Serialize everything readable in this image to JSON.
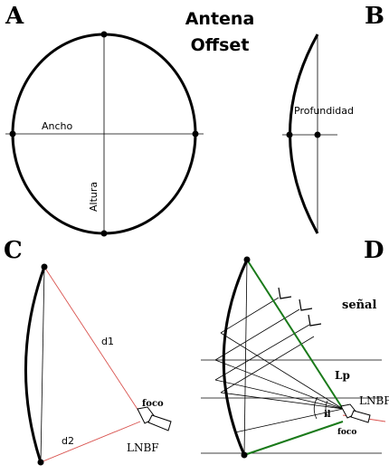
{
  "panels": {
    "a": {
      "letter": "A",
      "width_label": "Ancho",
      "height_label": "Altura"
    },
    "b": {
      "letter": "B",
      "depth_label": "Profundidad"
    },
    "c": {
      "letter": "C",
      "d1": "d1",
      "d2": "d2",
      "focus": "foco",
      "lnbf": "LNBF"
    },
    "d": {
      "letter": "D",
      "signal": "señal",
      "lp": "Lp",
      "angle": "il",
      "lnbf": "LNBF",
      "focus": "foco"
    }
  },
  "title": {
    "line1": "Antena",
    "line2": "Offset"
  },
  "colors": {
    "line": "#000000",
    "red": "#d9534f",
    "green": "#1a7a1a",
    "point": "#000000"
  }
}
